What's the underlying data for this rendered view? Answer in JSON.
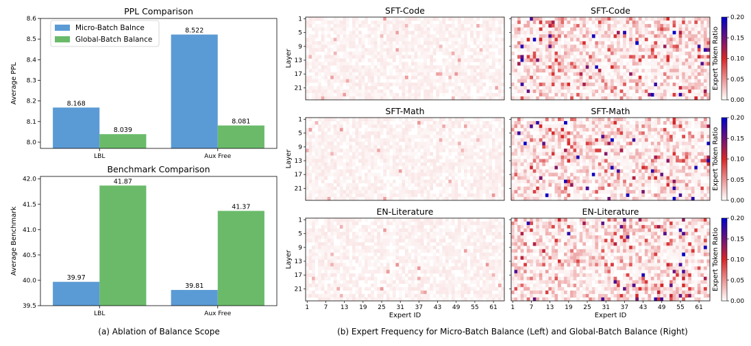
{
  "colors": {
    "micro": "#5b9bd5",
    "global": "#6aba6a",
    "heat_low": "#ffffff",
    "heat_mid": "#d62728",
    "heat_high": "#0000cc"
  },
  "captions": {
    "a": "(a) Ablation of Balance Scope",
    "b": "(b) Expert Frequency for Micro-Batch Balance (Left) and Global-Batch Balance (Right)"
  },
  "chart_data": [
    {
      "type": "bar",
      "title": "PPL Comparison",
      "categories": [
        "LBL",
        "Aux Free"
      ],
      "series": [
        {
          "name": "Micro-Batch Balnce",
          "values": [
            8.168,
            8.522
          ],
          "labels": [
            "8.168",
            "8.522"
          ]
        },
        {
          "name": "Global-Batch Balance",
          "values": [
            8.039,
            8.081
          ],
          "labels": [
            "8.039",
            "8.081"
          ]
        }
      ],
      "xlabel": "",
      "ylabel": "Average PPL",
      "ylim": [
        7.97,
        8.6
      ],
      "yticks": [
        8.0,
        8.1,
        8.2,
        8.3,
        8.4,
        8.5,
        8.6
      ],
      "ytick_labels": [
        "8.0",
        "8.1",
        "8.2",
        "8.3",
        "8.4",
        "8.5",
        "8.6"
      ],
      "legend": "top-left"
    },
    {
      "type": "bar",
      "title": "Benchmark Comparison",
      "categories": [
        "LBL",
        "Aux Free"
      ],
      "series": [
        {
          "name": "Micro-Batch Balnce",
          "values": [
            39.97,
            39.81
          ],
          "labels": [
            "39.97",
            "39.81"
          ]
        },
        {
          "name": "Global-Batch Balance",
          "values": [
            41.87,
            41.37
          ],
          "labels": [
            "41.87",
            "41.37"
          ]
        }
      ],
      "xlabel": "",
      "ylabel": "Average Benchmark",
      "ylim": [
        39.5,
        42.05
      ],
      "yticks": [
        39.5,
        40.0,
        40.5,
        41.0,
        41.5,
        42.0
      ],
      "ytick_labels": [
        "39.5",
        "40.0",
        "40.5",
        "41.0",
        "41.5",
        "42.0"
      ]
    },
    {
      "type": "heatmap",
      "panels": [
        {
          "title": "SFT-Code",
          "scope": "micro-batch",
          "max_ratio": 0.05,
          "note": "near-uniform low values"
        },
        {
          "title": "SFT-Code",
          "scope": "global-batch",
          "max_ratio": 0.2,
          "note": "sparse, highly specialized experts"
        },
        {
          "title": "SFT-Math",
          "scope": "micro-batch",
          "max_ratio": 0.05
        },
        {
          "title": "SFT-Math",
          "scope": "global-batch",
          "max_ratio": 0.2
        },
        {
          "title": "EN-Literature",
          "scope": "micro-batch",
          "max_ratio": 0.05
        },
        {
          "title": "EN-Literature",
          "scope": "global-batch",
          "max_ratio": 0.2
        }
      ],
      "n_layers": 24,
      "n_experts": 64,
      "ylabel": "Layer",
      "xlabel": "Expert ID",
      "ytick_labels": [
        "1",
        "5",
        "9",
        "13",
        "17",
        "21"
      ],
      "xtick_labels": [
        "1",
        "7",
        "13",
        "19",
        "25",
        "31",
        "37",
        "43",
        "49",
        "55",
        "61"
      ],
      "colorbar": {
        "label": "Expert Token Ratio",
        "range": [
          0.0,
          0.2
        ],
        "tick_labels": [
          "0.00",
          "0.05",
          "0.10",
          "0.15",
          "0.20"
        ]
      }
    }
  ]
}
